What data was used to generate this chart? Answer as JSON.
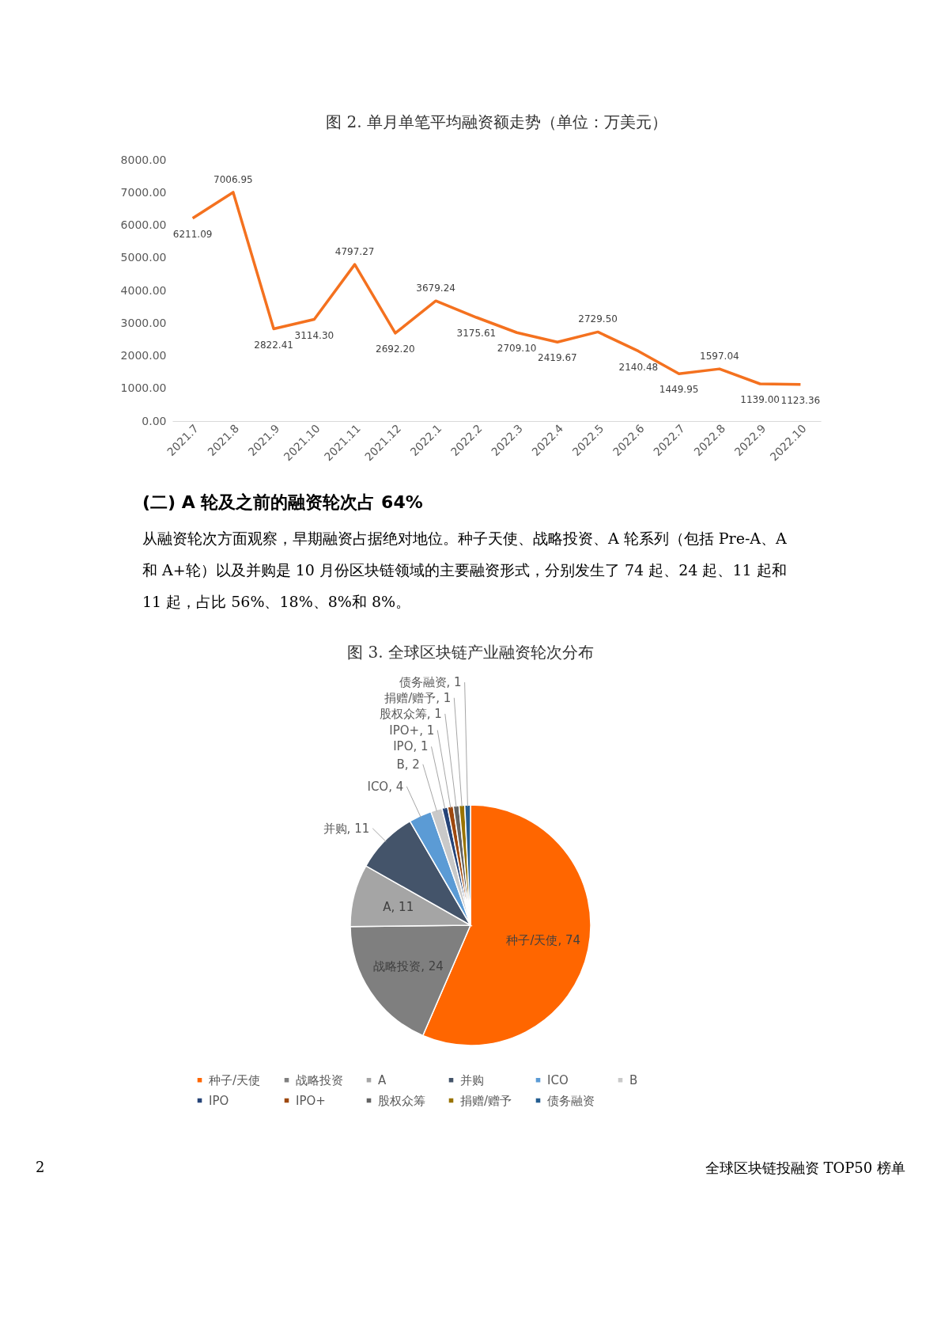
{
  "chart_data": [
    {
      "type": "line",
      "title": "图 2.  单月单笔平均融资额走势（单位：万美元）",
      "categories": [
        "2021.7",
        "2021.8",
        "2021.9",
        "2021.10",
        "2021.11",
        "2021.12",
        "2022.1",
        "2022.2",
        "2022.3",
        "2022.4",
        "2022.5",
        "2022.6",
        "2022.7",
        "2022.8",
        "2022.9",
        "2022.10"
      ],
      "series": [
        {
          "color": "#f4711f",
          "values": [
            6211.09,
            7006.95,
            2822.41,
            3114.3,
            4797.27,
            2692.2,
            3679.24,
            3175.61,
            2709.1,
            2419.67,
            2729.5,
            2140.48,
            1449.95,
            1597.04,
            1139.0,
            1123.36
          ],
          "value_labels": [
            "6211.09",
            "7006.95",
            "2822.41",
            "3114.30",
            "4797.27",
            "2692.20",
            "3679.24",
            "3175.61",
            "2709.10",
            "2419.67",
            "2729.50",
            "2140.48",
            "1449.95",
            "1597.04",
            "1139.00",
            "1123.36"
          ]
        }
      ],
      "ylim": [
        0,
        8000
      ],
      "yticks": [
        {
          "value": 0,
          "label": "0.00"
        },
        {
          "value": 1000,
          "label": "1000.00"
        },
        {
          "value": 2000,
          "label": "2000.00"
        },
        {
          "value": 3000,
          "label": "3000.00"
        },
        {
          "value": 4000,
          "label": "4000.00"
        },
        {
          "value": 5000,
          "label": "5000.00"
        },
        {
          "value": 6000,
          "label": "6000.00"
        },
        {
          "value": 7000,
          "label": "7000.00"
        },
        {
          "value": 8000,
          "label": "8000.00"
        }
      ],
      "annotations": [
        "(二) A 轮及之前的融资轮次占 64%",
        "从融资轮次方面观察，早期融资占据绝对地位。种子天使、战略投资、A 轮系列（包括 Pre-A、A 和 A+轮）以及并购是 10 月份区块链领域的主要融资形式，分别发生了 74 起、24 起、11 起和 11 起，占比 56%、18%、8%和 8%。"
      ]
    },
    {
      "type": "pie",
      "title": "图 3.  全球区块链产业融资轮次分布",
      "categories": [
        "种子/天使",
        "战略投资",
        "A",
        "并购",
        "ICO",
        "B",
        "IPO",
        "IPO+",
        "股权众筹",
        "捐赠/赠予",
        "债务融资"
      ],
      "values": [
        74,
        24,
        11,
        11,
        4,
        2,
        1,
        1,
        1,
        1,
        1
      ],
      "colors": [
        "#ff6600",
        "#7f7f7f",
        "#a5a5a5",
        "#44546a",
        "#5b9bd5",
        "#c9c9c9",
        "#264478",
        "#9e480e",
        "#636363",
        "#997300",
        "#255e91"
      ],
      "value_labels": [
        "种子/天使, 74",
        "战略投资, 24",
        "A, 11",
        "并购, 11",
        "ICO, 4",
        "B, 2",
        "IPO, 1",
        "IPO+, 1",
        "股权众筹, 1",
        "捐赠/赠予, 1",
        "债务融资, 1"
      ],
      "legend": "bottom",
      "annotations": [
        "2",
        "全球区块链投融资 TOP50 榜单"
      ]
    }
  ]
}
